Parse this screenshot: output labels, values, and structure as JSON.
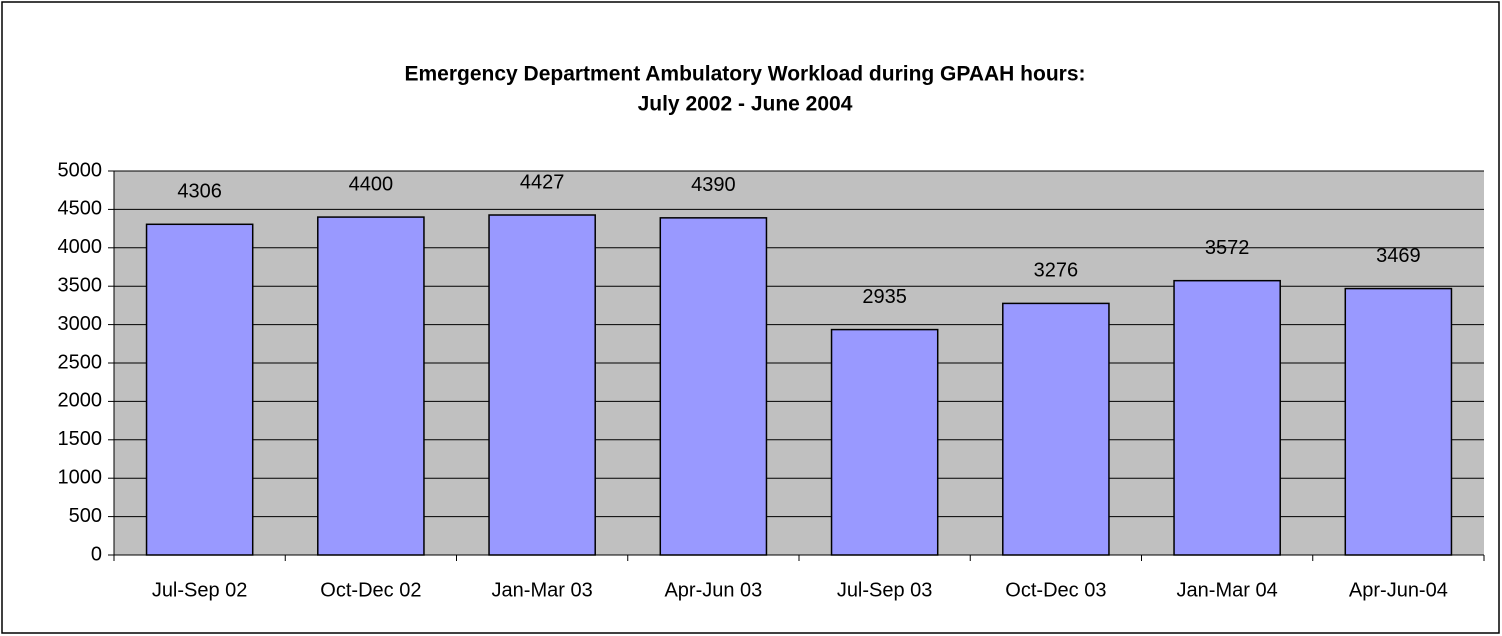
{
  "chart_data": {
    "type": "bar",
    "title": "Emergency Department Ambulatory Workload during GPAAH hours:",
    "subtitle": "July 2002 - June 2004",
    "categories": [
      "Jul-Sep 02",
      "Oct-Dec 02",
      "Jan-Mar 03",
      "Apr-Jun 03",
      "Jul-Sep 03",
      "Oct-Dec 03",
      "Jan-Mar 04",
      "Apr-Jun-04"
    ],
    "values": [
      4306,
      4400,
      4427,
      4390,
      2935,
      3276,
      3572,
      3469
    ],
    "color": "#9999ff",
    "ylim": [
      0,
      5000
    ],
    "yticks": [
      0,
      500,
      1000,
      1500,
      2000,
      2500,
      3000,
      3500,
      4000,
      4500,
      5000
    ],
    "grid": true
  }
}
